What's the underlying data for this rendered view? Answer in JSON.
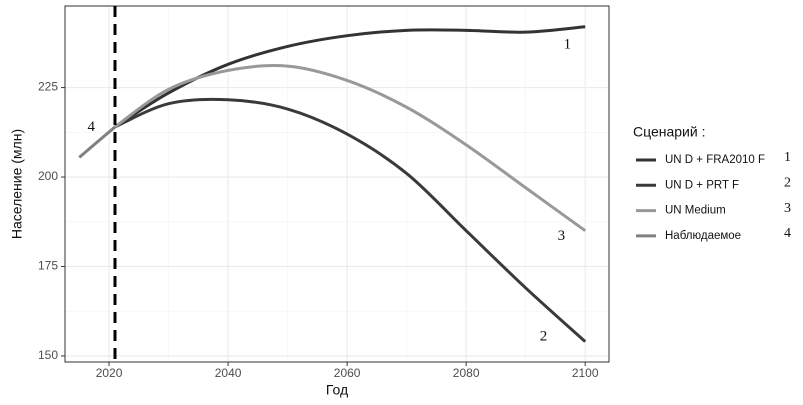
{
  "chart_data": {
    "type": "line",
    "x_label": "Год",
    "y_label": "Население (млн)",
    "x": [
      2015,
      2021,
      2030,
      2040,
      2050,
      2060,
      2070,
      2080,
      2090,
      2100
    ],
    "series": [
      {
        "name": "UN D + FRA2010 F",
        "marker": "1",
        "color": "#333333",
        "values": [
          null,
          214,
          223.5,
          231.5,
          236.5,
          239.5,
          241,
          241,
          240.5,
          242
        ]
      },
      {
        "name": "UN D + PRT F",
        "marker": "2",
        "color": "#3a3a3a",
        "values": [
          null,
          214,
          220.5,
          221.6,
          219,
          212,
          201,
          185,
          169,
          154
        ]
      },
      {
        "name": "UN Medium",
        "marker": "3",
        "color": "#999999",
        "values": [
          null,
          214,
          224.5,
          229.8,
          231,
          227,
          219.5,
          209,
          197,
          185
        ]
      },
      {
        "name": "Наблюдаемое",
        "marker": "4",
        "color": "#808080",
        "values": [
          205.5,
          214,
          null,
          null,
          null,
          null,
          null,
          null,
          null,
          null
        ]
      }
    ],
    "legend_title": "Сценарий :",
    "vline": 2021,
    "annotations": [
      {
        "text": "1",
        "x": 2097,
        "y": 236.9
      },
      {
        "text": "2",
        "x": 2093,
        "y": 155.3
      },
      {
        "text": "3",
        "x": 2096,
        "y": 183.4
      },
      {
        "text": "4",
        "x": 2017,
        "y": 213.8
      }
    ],
    "xlim": [
      2012.6,
      2104
    ],
    "ylim": [
      148.3,
      247.8
    ],
    "xticks": [
      2020,
      2040,
      2060,
      2080,
      2100
    ],
    "yticks": [
      150,
      175,
      200,
      225
    ],
    "grid": true,
    "legend": "right"
  }
}
